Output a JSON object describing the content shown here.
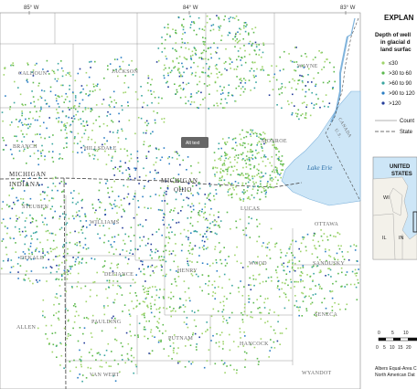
{
  "ticks": {
    "lon1": "85° W",
    "lon2": "84° W",
    "lon3": "83° W"
  },
  "counties": {
    "calhoun": "CALHOUN",
    "jackson": "JACKSON",
    "wayne": "WAYNE",
    "branch": "BRANCH",
    "hillsdale": "HILLSDALE",
    "monroe": "MONROE",
    "steuben": "STEUBEN",
    "lucas": "LUCAS",
    "ottawa": "OTTAWA",
    "williams": "WILLIAMS",
    "dekalb": "DEKALB",
    "defiance": "DEFIANCE",
    "henry": "HENRY",
    "wood": "WOOD",
    "sandusky": "SANDUSKY",
    "paulding": "PAULDING",
    "seneca": "SENECA",
    "allen": "ALLEN",
    "putnam": "PUTNAM",
    "hancock": "HANCOCK",
    "vanwert": "VAN WERT",
    "wyandot": "WYANDOT"
  },
  "states": {
    "michigan": "MICHIGAN",
    "indiana": "INDIANA",
    "michigan2": "MICHIGAN",
    "ohio": "OHIO"
  },
  "canada": {
    "canada": "CANADA",
    "us": "U.S."
  },
  "lake": "Lake Erie",
  "tooltip": "Alt text",
  "legend": {
    "title": "EXPLAN",
    "head1": "Depth of well",
    "head2": "in glacial d",
    "head3": "land surfac",
    "items": [
      {
        "label": "≤30",
        "color": "#9fd46a"
      },
      {
        "label": ">30 to 60",
        "color": "#5cb94d"
      },
      {
        "label": ">60 to 90",
        "color": "#3aa6a0"
      },
      {
        "label": ">90 to 120",
        "color": "#2b7ec4"
      },
      {
        "label": ">120",
        "color": "#243c9a"
      }
    ],
    "county_boundary": "Count",
    "state_boundary": "State"
  },
  "inset": {
    "united": "UNITED",
    "states": "STATES",
    "wi": "WI",
    "il": "IL",
    "in": "IN"
  },
  "scale": {
    "top": [
      "0",
      "5",
      "10"
    ],
    "bottom": [
      "0",
      "5",
      "10",
      "15",
      "20"
    ]
  },
  "credits": {
    "line1": "Albers Equal-Area C",
    "line2": "North American Dat"
  }
}
